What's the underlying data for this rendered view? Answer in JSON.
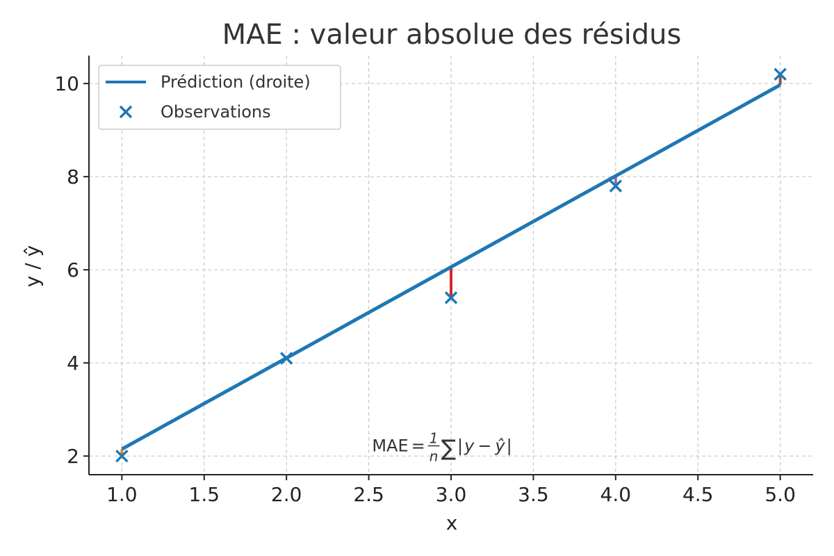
{
  "chart_data": {
    "type": "scatter",
    "title": "MAE : valeur absolue des résidus",
    "xlabel": "x",
    "ylabel": "y / ŷ",
    "xlim": [
      0.8,
      5.2
    ],
    "ylim": [
      1.6,
      10.6
    ],
    "x_ticks": [
      "1.0",
      "1.5",
      "2.0",
      "2.5",
      "3.0",
      "3.5",
      "4.0",
      "4.5",
      "5.0"
    ],
    "y_ticks": [
      "2",
      "4",
      "6",
      "8",
      "10"
    ],
    "grid": true,
    "legend_position": "top-left",
    "series": [
      {
        "name": "Prédiction (droite)",
        "kind": "line",
        "color": "#1f77b4",
        "x": [
          1.0,
          5.0
        ],
        "y": [
          2.15,
          9.97
        ]
      },
      {
        "name": "Observations",
        "kind": "scatter",
        "marker": "x",
        "color": "#1f77b4",
        "x": [
          1.0,
          2.0,
          3.0,
          4.0,
          5.0
        ],
        "y": [
          2.0,
          4.1,
          5.4,
          7.8,
          10.2
        ]
      }
    ],
    "residuals": [
      {
        "x": 1.0,
        "y_obs": 2.0,
        "y_pred": 2.15,
        "color": "#ff7f0e"
      },
      {
        "x": 2.0,
        "y_obs": 4.1,
        "y_pred": 4.1,
        "color": "#2ca02c"
      },
      {
        "x": 3.0,
        "y_obs": 5.4,
        "y_pred": 6.06,
        "color": "#d62728"
      },
      {
        "x": 4.0,
        "y_obs": 7.8,
        "y_pred": 8.01,
        "color": "#9467bd"
      },
      {
        "x": 5.0,
        "y_obs": 10.2,
        "y_pred": 9.97,
        "color": "#8c564b"
      }
    ],
    "annotation": {
      "x": 2.52,
      "y": 2.1,
      "prefix": "MAE",
      "equals": "=",
      "num": "1",
      "den": "n",
      "sum": "∑",
      "body_open": "|",
      "body_y": "y",
      "minus": "−",
      "body_yhat": "ŷ",
      "body_close": "|"
    }
  }
}
